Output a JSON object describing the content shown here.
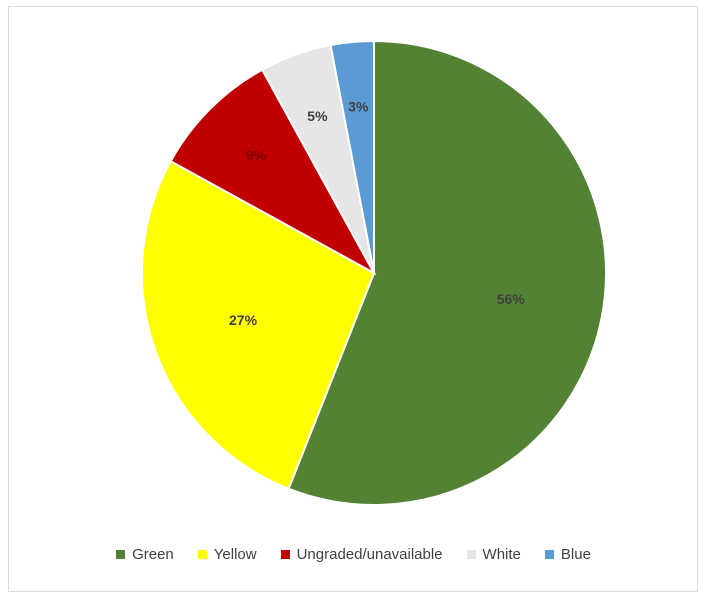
{
  "chart_data": {
    "type": "pie",
    "title": "",
    "legend_position": "bottom",
    "slices": [
      {
        "label": "Green",
        "value": 56,
        "display": "56%",
        "color": "#548235",
        "label_color": "#404040"
      },
      {
        "label": "Yellow",
        "value": 27,
        "display": "27%",
        "color": "#ffff00",
        "label_color": "#404040"
      },
      {
        "label": "Ungraded/unavailable",
        "value": 9,
        "display": "9%",
        "color": "#c00000",
        "label_color": "#7f0000"
      },
      {
        "label": "White",
        "value": 5,
        "display": "5%",
        "color": "#e7e6e6",
        "label_color": "#404040"
      },
      {
        "label": "Blue",
        "value": 3,
        "display": "3%",
        "color": "#5b9bd5",
        "label_color": "#404040"
      }
    ]
  }
}
